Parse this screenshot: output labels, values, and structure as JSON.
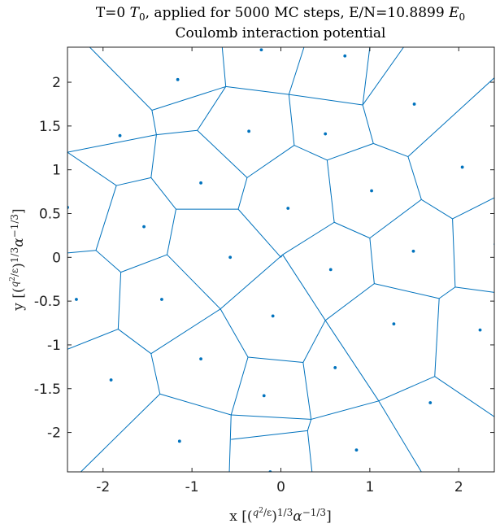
{
  "chart_data": {
    "type": "scatter",
    "title": [
      "T=0 T₀, applied for 5000 MC steps, E/N=10.8899 E₀",
      "Coulomb interaction potential"
    ],
    "xlabel": "x [(q²/ε)^{1/3} α^{-1/3}]",
    "ylabel": "y [(q²/ε)^{1/3} α^{-1/3}]",
    "xlim": [
      -2.4,
      2.4
    ],
    "ylim": [
      -2.45,
      2.4
    ],
    "xticks": [
      -2,
      -1,
      0,
      1,
      2
    ],
    "xtick_labels": [
      "-2",
      "-1",
      "0",
      "1",
      "2"
    ],
    "yticks": [
      2,
      1.5,
      1,
      0.5,
      0,
      -0.5,
      -1,
      -1.5,
      -2
    ],
    "ytick_labels": [
      "2",
      "1.5",
      "1",
      "0.5",
      "0",
      "-0.5",
      "-1",
      "-1.5",
      "-2"
    ],
    "grid": false,
    "color": "#0072BD",
    "points": [
      [
        -0.22,
        2.37
      ],
      [
        0.72,
        2.3
      ],
      [
        -1.16,
        2.03
      ],
      [
        1.5,
        1.75
      ],
      [
        -1.81,
        1.39
      ],
      [
        -0.36,
        1.44
      ],
      [
        0.5,
        1.41
      ],
      [
        2.04,
        1.03
      ],
      [
        -0.9,
        0.85
      ],
      [
        1.02,
        0.76
      ],
      [
        -2.4,
        0.57
      ],
      [
        0.08,
        0.56
      ],
      [
        -1.54,
        0.35
      ],
      [
        -0.57,
        0.0
      ],
      [
        1.49,
        0.07
      ],
      [
        2.41,
        0.15
      ],
      [
        0.56,
        -0.14
      ],
      [
        -2.3,
        -0.48
      ],
      [
        -1.34,
        -0.48
      ],
      [
        -0.09,
        -0.67
      ],
      [
        1.27,
        -0.76
      ],
      [
        2.24,
        -0.83
      ],
      [
        -0.9,
        -1.16
      ],
      [
        0.61,
        -1.26
      ],
      [
        -1.91,
        -1.4
      ],
      [
        -0.19,
        -1.58
      ],
      [
        1.68,
        -1.66
      ],
      [
        -1.14,
        -2.1
      ],
      [
        0.85,
        -2.2
      ],
      [
        -0.12,
        -2.45
      ]
    ],
    "voronoi_edges": [
      [
        [
          -2.15,
          2.4
        ],
        [
          -1.45,
          1.68
        ]
      ],
      [
        [
          -1.45,
          1.68
        ],
        [
          -0.62,
          1.95
        ]
      ],
      [
        [
          -0.62,
          1.95
        ],
        [
          -0.66,
          2.4
        ]
      ],
      [
        [
          -0.62,
          1.95
        ],
        [
          0.09,
          1.86
        ]
      ],
      [
        [
          0.09,
          1.86
        ],
        [
          0.26,
          2.4
        ]
      ],
      [
        [
          0.09,
          1.86
        ],
        [
          0.15,
          1.28
        ]
      ],
      [
        [
          0.09,
          1.86
        ],
        [
          0.92,
          1.74
        ]
      ],
      [
        [
          0.92,
          1.74
        ],
        [
          1.38,
          2.4
        ]
      ],
      [
        [
          0.92,
          1.74
        ],
        [
          1.04,
          1.3
        ]
      ],
      [
        [
          0.92,
          1.74
        ],
        [
          1.0,
          2.4
        ]
      ],
      [
        [
          -1.45,
          1.68
        ],
        [
          -1.4,
          1.4
        ]
      ],
      [
        [
          -1.4,
          1.4
        ],
        [
          -2.4,
          1.2
        ]
      ],
      [
        [
          -1.4,
          1.4
        ],
        [
          -1.46,
          0.91
        ]
      ],
      [
        [
          -1.4,
          1.4
        ],
        [
          -0.94,
          1.45
        ]
      ],
      [
        [
          -0.94,
          1.45
        ],
        [
          -0.38,
          0.91
        ]
      ],
      [
        [
          -0.94,
          1.45
        ],
        [
          -0.62,
          1.95
        ]
      ],
      [
        [
          -1.46,
          0.91
        ],
        [
          -1.85,
          0.82
        ]
      ],
      [
        [
          -1.46,
          0.91
        ],
        [
          -1.18,
          0.55
        ]
      ],
      [
        [
          -1.85,
          0.82
        ],
        [
          -2.4,
          1.2
        ]
      ],
      [
        [
          -1.85,
          0.82
        ],
        [
          -2.08,
          0.08
        ]
      ],
      [
        [
          -2.08,
          0.08
        ],
        [
          -2.4,
          0.05
        ]
      ],
      [
        [
          -2.08,
          0.08
        ],
        [
          -1.8,
          -0.17
        ]
      ],
      [
        [
          -0.38,
          0.91
        ],
        [
          -0.48,
          0.55
        ]
      ],
      [
        [
          -0.48,
          0.55
        ],
        [
          -1.18,
          0.55
        ]
      ],
      [
        [
          -1.18,
          0.55
        ],
        [
          -1.28,
          0.03
        ]
      ],
      [
        [
          -0.38,
          0.91
        ],
        [
          0.15,
          1.28
        ]
      ],
      [
        [
          0.15,
          1.28
        ],
        [
          0.52,
          1.11
        ]
      ],
      [
        [
          0.52,
          1.11
        ],
        [
          1.04,
          1.3
        ]
      ],
      [
        [
          0.52,
          1.11
        ],
        [
          0.6,
          0.4
        ]
      ],
      [
        [
          0.6,
          0.4
        ],
        [
          0.02,
          0.03
        ]
      ],
      [
        [
          -0.48,
          0.55
        ],
        [
          0.0,
          0.0
        ]
      ],
      [
        [
          0.6,
          0.4
        ],
        [
          1.0,
          0.22
        ]
      ],
      [
        [
          1.04,
          1.3
        ],
        [
          1.43,
          1.15
        ]
      ],
      [
        [
          1.43,
          1.15
        ],
        [
          1.58,
          0.66
        ]
      ],
      [
        [
          1.43,
          1.15
        ],
        [
          2.4,
          2.05
        ]
      ],
      [
        [
          1.58,
          0.66
        ],
        [
          1.0,
          0.22
        ]
      ],
      [
        [
          1.58,
          0.66
        ],
        [
          1.93,
          0.44
        ]
      ],
      [
        [
          1.93,
          0.44
        ],
        [
          2.4,
          0.68
        ]
      ],
      [
        [
          1.93,
          0.44
        ],
        [
          1.96,
          -0.34
        ]
      ],
      [
        [
          1.96,
          -0.34
        ],
        [
          2.4,
          -0.4
        ]
      ],
      [
        [
          1.96,
          -0.34
        ],
        [
          1.78,
          -0.47
        ]
      ],
      [
        [
          1.78,
          -0.47
        ],
        [
          1.05,
          -0.3
        ]
      ],
      [
        [
          1.0,
          0.22
        ],
        [
          1.05,
          -0.3
        ]
      ],
      [
        [
          1.05,
          -0.3
        ],
        [
          0.5,
          -0.72
        ]
      ],
      [
        [
          0.5,
          -0.72
        ],
        [
          0.02,
          0.03
        ]
      ],
      [
        [
          0.02,
          0.03
        ],
        [
          -0.68,
          -0.59
        ]
      ],
      [
        [
          -1.28,
          0.03
        ],
        [
          -0.68,
          -0.59
        ]
      ],
      [
        [
          -1.28,
          0.03
        ],
        [
          -1.8,
          -0.17
        ]
      ],
      [
        [
          -1.8,
          -0.17
        ],
        [
          -1.83,
          -0.82
        ]
      ],
      [
        [
          -1.83,
          -0.82
        ],
        [
          -2.4,
          -1.05
        ]
      ],
      [
        [
          -1.83,
          -0.82
        ],
        [
          -1.46,
          -1.1
        ]
      ],
      [
        [
          -1.46,
          -1.1
        ],
        [
          -0.68,
          -0.59
        ]
      ],
      [
        [
          -1.46,
          -1.1
        ],
        [
          -1.36,
          -1.56
        ]
      ],
      [
        [
          -1.36,
          -1.56
        ],
        [
          -2.25,
          -2.45
        ]
      ],
      [
        [
          -1.36,
          -1.56
        ],
        [
          -0.56,
          -1.8
        ]
      ],
      [
        [
          -0.68,
          -0.59
        ],
        [
          -0.37,
          -1.14
        ]
      ],
      [
        [
          -0.37,
          -1.14
        ],
        [
          -0.56,
          -1.8
        ]
      ],
      [
        [
          -0.37,
          -1.14
        ],
        [
          0.25,
          -1.2
        ]
      ],
      [
        [
          0.25,
          -1.2
        ],
        [
          0.5,
          -0.72
        ]
      ],
      [
        [
          0.25,
          -1.2
        ],
        [
          0.34,
          -1.85
        ]
      ],
      [
        [
          0.34,
          -1.85
        ],
        [
          -0.56,
          -1.8
        ]
      ],
      [
        [
          -0.56,
          -1.8
        ],
        [
          -0.58,
          -2.45
        ]
      ],
      [
        [
          0.34,
          -1.85
        ],
        [
          0.3,
          -1.98
        ]
      ],
      [
        [
          0.3,
          -1.98
        ],
        [
          0.35,
          -2.45
        ]
      ],
      [
        [
          0.3,
          -1.98
        ],
        [
          -0.56,
          -2.08
        ]
      ],
      [
        [
          0.34,
          -1.85
        ],
        [
          1.1,
          -1.64
        ]
      ],
      [
        [
          1.1,
          -1.64
        ],
        [
          0.5,
          -0.72
        ]
      ],
      [
        [
          1.1,
          -1.64
        ],
        [
          1.58,
          -2.45
        ]
      ],
      [
        [
          1.1,
          -1.64
        ],
        [
          1.73,
          -1.36
        ]
      ],
      [
        [
          1.73,
          -1.36
        ],
        [
          1.78,
          -0.47
        ]
      ],
      [
        [
          1.73,
          -1.36
        ],
        [
          2.4,
          -1.82
        ]
      ],
      [
        [
          0.02,
          0.03
        ],
        [
          0.0,
          0.0
        ]
      ]
    ]
  }
}
